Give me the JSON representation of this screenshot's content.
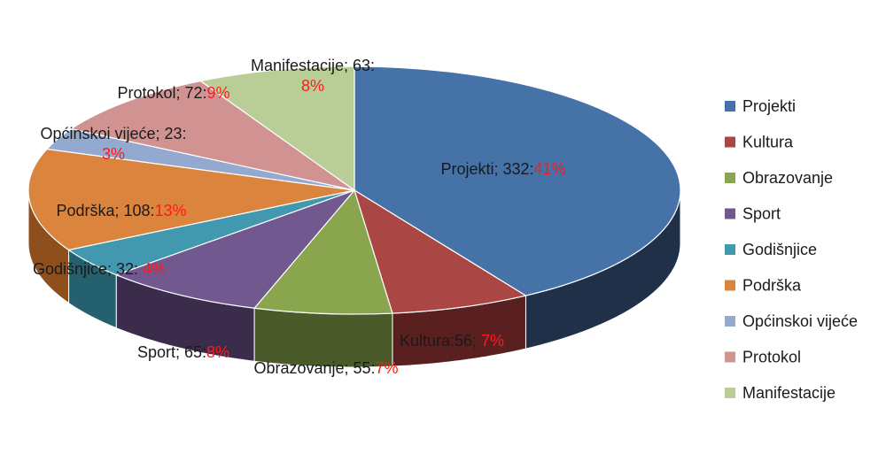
{
  "chart_data": {
    "type": "pie",
    "style": "3d",
    "legend_position": "right",
    "categories": [
      "Projekti",
      "Kultura",
      "Obrazovanje",
      "Sport",
      "Godišnjice",
      "Podrška",
      "Općinskoi vijeće",
      "Protokol",
      "Manifestacije"
    ],
    "values": [
      332,
      56,
      55,
      65,
      32,
      108,
      23,
      72,
      63
    ],
    "percent_labels": [
      "41%",
      "7%",
      "7%",
      "8%",
      "4%",
      "13%",
      "3%",
      "9%",
      "8%"
    ],
    "data_labels": [
      {
        "name": "Projekti; 332:",
        "pct": "41%"
      },
      {
        "name": "Kultura:56; ",
        "pct": "7%"
      },
      {
        "name": "Obrazovanje; 55:",
        "pct": "7%"
      },
      {
        "name": "Sport; 65:",
        "pct": "8%"
      },
      {
        "name": "Godišnjice; 32: ",
        "pct": "4%"
      },
      {
        "name": "Podrška; 108:",
        "pct": "13%"
      },
      {
        "name": "Općinskoi vijeće; 23:",
        "pct": "3%"
      },
      {
        "name": "Protokol; 72:",
        "pct": "9%"
      },
      {
        "name": "Manifestacije; 63:",
        "pct": "8%"
      }
    ],
    "colors": [
      "#4572a7",
      "#aa4643",
      "#89a54e",
      "#71588f",
      "#4198af",
      "#db843d",
      "#93a9cf",
      "#d19392",
      "#b9cd96"
    ],
    "side_colors": [
      "#1f3048",
      "#5a2020",
      "#4a5a28",
      "#3b2c4c",
      "#25606e",
      "#8f4f1c",
      "#5b6f91",
      "#8c5a59",
      "#7b8c5c"
    ],
    "legend": [
      "Projekti",
      "Kultura",
      "Obrazovanje",
      "Sport",
      "Godišnjice",
      "Podrška",
      "Općinskoi vijeće",
      "Protokol",
      "Manifestacije"
    ]
  }
}
